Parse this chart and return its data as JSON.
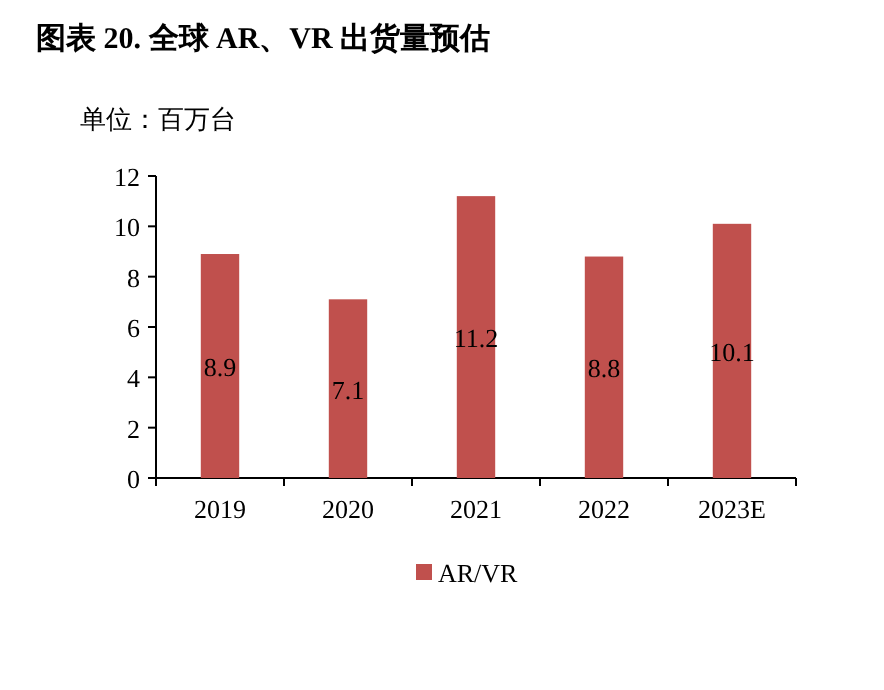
{
  "chart_data": {
    "type": "bar",
    "title": "图表 20. 全球 AR、VR 出货量预估",
    "ylabel": "单位：百万台",
    "categories": [
      "2019",
      "2020",
      "2021",
      "2022",
      "2023E"
    ],
    "series": [
      {
        "name": "AR/VR",
        "color": "#c0504d",
        "values": [
          8.9,
          7.1,
          11.2,
          8.8,
          10.1
        ]
      }
    ],
    "ylim": [
      0,
      12
    ],
    "yticks": [
      0,
      2,
      4,
      6,
      8,
      10,
      12
    ],
    "data_labels": true,
    "legend": "bottom"
  }
}
